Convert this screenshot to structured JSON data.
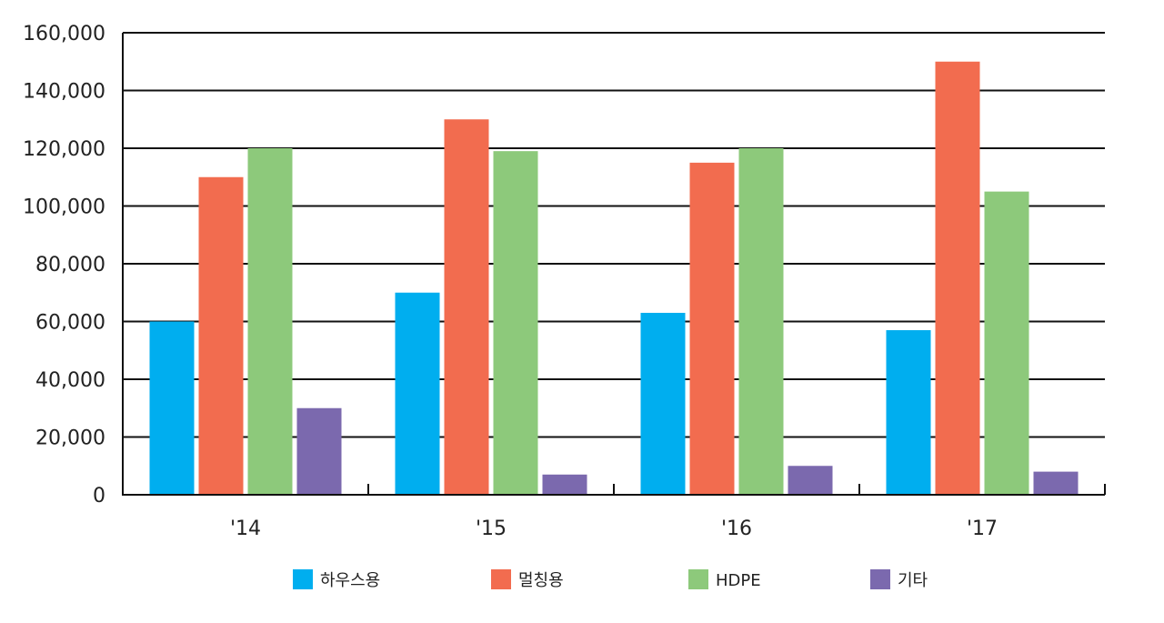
{
  "chart_data": {
    "type": "bar",
    "title": "",
    "xlabel": "",
    "ylabel": "",
    "categories": [
      "'14",
      "'15",
      "'16",
      "'17"
    ],
    "series": [
      {
        "name": "하우스용",
        "color": "#00AEEF",
        "values": [
          60000,
          70000,
          63000,
          57000
        ]
      },
      {
        "name": "멀칭용",
        "color": "#F26C4F",
        "values": [
          110000,
          130000,
          115000,
          150000
        ]
      },
      {
        "name": "HDPE",
        "color": "#8DC97B",
        "values": [
          120000,
          119000,
          120000,
          105000
        ]
      },
      {
        "name": "기타",
        "color": "#7B69AE",
        "values": [
          30000,
          7000,
          10000,
          8000
        ]
      }
    ],
    "ylim": [
      0,
      160000
    ],
    "yticks": [
      0,
      20000,
      40000,
      60000,
      80000,
      100000,
      120000,
      140000,
      160000
    ],
    "ytick_labels": [
      "0",
      "20,000",
      "40,000",
      "60,000",
      "80,000",
      "100,000",
      "120,000",
      "140,000",
      "160,000"
    ],
    "grid": true,
    "legend_position": "bottom"
  }
}
